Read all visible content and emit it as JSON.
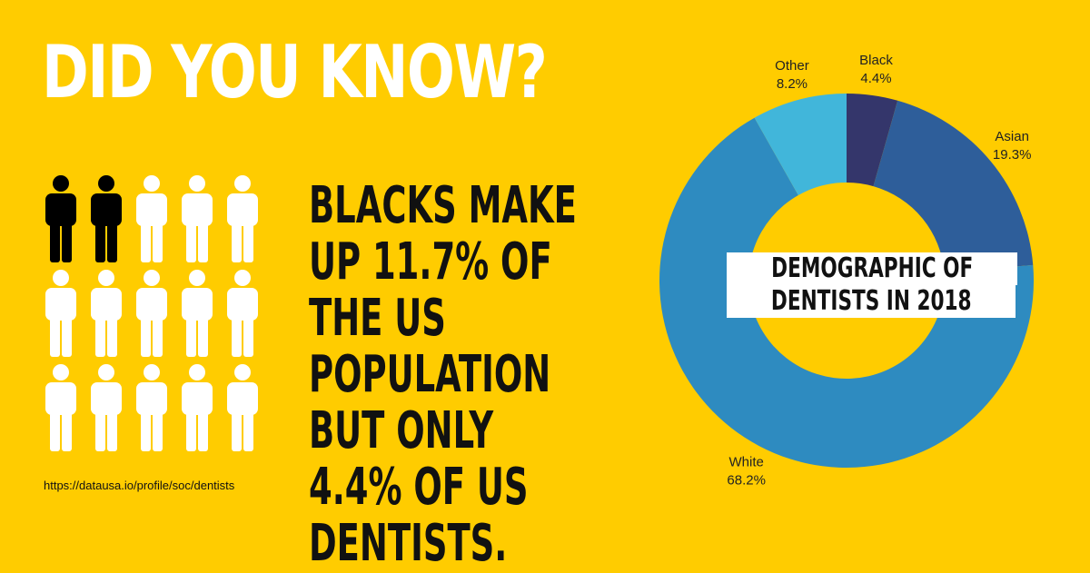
{
  "headline": "DID YOU KNOW?",
  "statement": "BLACKS MAKE UP 11.7% OF THE US POPULATION BUT ONLY 4.4% OF US DENTISTS.",
  "source": "https://datausa.io/profile/soc/dentists",
  "people": {
    "total": 15,
    "highlighted": 2,
    "highlight_color": "#000000",
    "default_color": "#FFFFFF",
    "icon": "person-icon"
  },
  "chart_data": {
    "type": "pie",
    "donut": true,
    "title": [
      "DEMOGRAPHIC OF",
      "DENTISTS IN 2018"
    ],
    "slices": [
      {
        "label": "Black",
        "value": 4.4,
        "display": "4.4%",
        "color": "#34366B"
      },
      {
        "label": "Asian",
        "value": 19.3,
        "display": "19.3%",
        "color": "#2E5E9A"
      },
      {
        "label": "White",
        "value": 68.2,
        "display": "68.2%",
        "color": "#2E8BC0"
      },
      {
        "label": "Other",
        "value": 8.2,
        "display": "8.2%",
        "color": "#41B6DA"
      }
    ]
  }
}
